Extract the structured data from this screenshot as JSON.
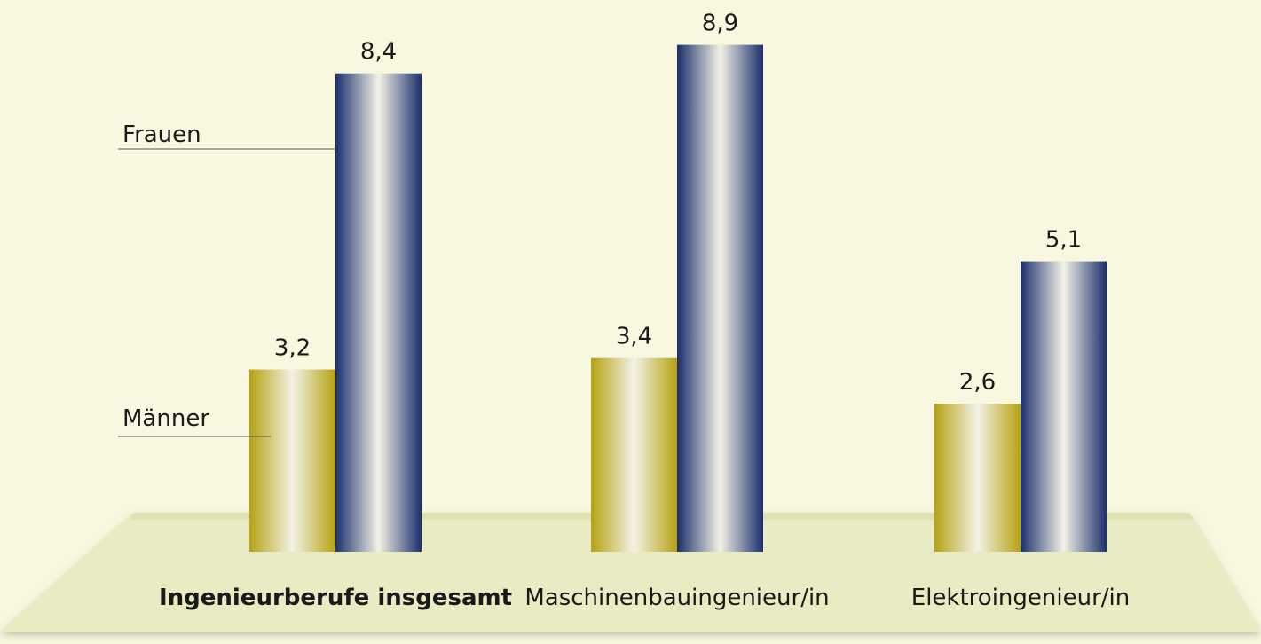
{
  "chart_data": {
    "type": "bar",
    "categories": [
      "Ingenieurberufe insgesamt",
      "Maschinenbauingenieur/in",
      "Elektroingenieur/in"
    ],
    "series": [
      {
        "name": "Männer",
        "color": "#b6a213",
        "values": [
          3.2,
          3.4,
          2.6
        ],
        "value_labels": [
          "3,2",
          "3,4",
          "2,6"
        ]
      },
      {
        "name": "Frauen",
        "color": "#1b2f6c",
        "values": [
          8.4,
          8.9,
          5.1
        ],
        "value_labels": [
          "8,4",
          "8,9",
          "5,1"
        ]
      }
    ]
  }
}
